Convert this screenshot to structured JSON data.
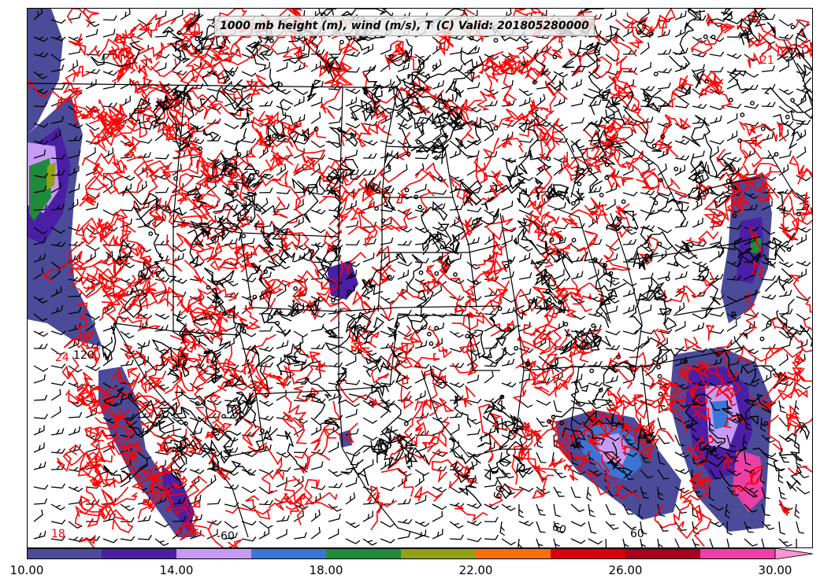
{
  "figure": {
    "title": "1000 mb height (m), wind (m/s), T (C) Valid: 201805280000"
  },
  "map": {
    "projection_region": "Continental United States",
    "height_contour_color": "#000000",
    "temperature_contour_color": "#ff0000",
    "wind_barb_color": "#000000",
    "contour_labels": [
      {
        "text": "120",
        "color": "#000000"
      },
      {
        "text": "60",
        "color": "#000000"
      },
      {
        "text": "60",
        "color": "#000000"
      },
      {
        "text": "60",
        "color": "#000000"
      },
      {
        "text": "-60",
        "color": "#000000"
      },
      {
        "text": "18",
        "color": "#ff0000"
      },
      {
        "text": "24",
        "color": "#ff0000"
      },
      {
        "text": "21",
        "color": "#ff0000"
      }
    ]
  },
  "colorbar": {
    "min": 10,
    "max": 30,
    "extend": "max",
    "bins": [
      {
        "from": 10,
        "to": 12,
        "color": "#4b4b9a"
      },
      {
        "from": 12,
        "to": 14,
        "color": "#4a1fa6"
      },
      {
        "from": 14,
        "to": 16,
        "color": "#c79af5"
      },
      {
        "from": 16,
        "to": 18,
        "color": "#3b75d6"
      },
      {
        "from": 18,
        "to": 20,
        "color": "#208a3c"
      },
      {
        "from": 20,
        "to": 22,
        "color": "#93a212"
      },
      {
        "from": 22,
        "to": 24,
        "color": "#f7700b"
      },
      {
        "from": 24,
        "to": 26,
        "color": "#d8000b"
      },
      {
        "from": 26,
        "to": 28,
        "color": "#a8001f"
      },
      {
        "from": 28,
        "to": 30,
        "color": "#ee3fa6"
      }
    ],
    "extend_color": "#ff94cf",
    "ticks": [
      {
        "value": 10,
        "label": "10.00"
      },
      {
        "value": 14,
        "label": "14.00"
      },
      {
        "value": 18,
        "label": "18.00"
      },
      {
        "value": 22,
        "label": "22.00"
      },
      {
        "value": 26,
        "label": "26.00"
      },
      {
        "value": 30,
        "label": "30.00"
      }
    ]
  }
}
